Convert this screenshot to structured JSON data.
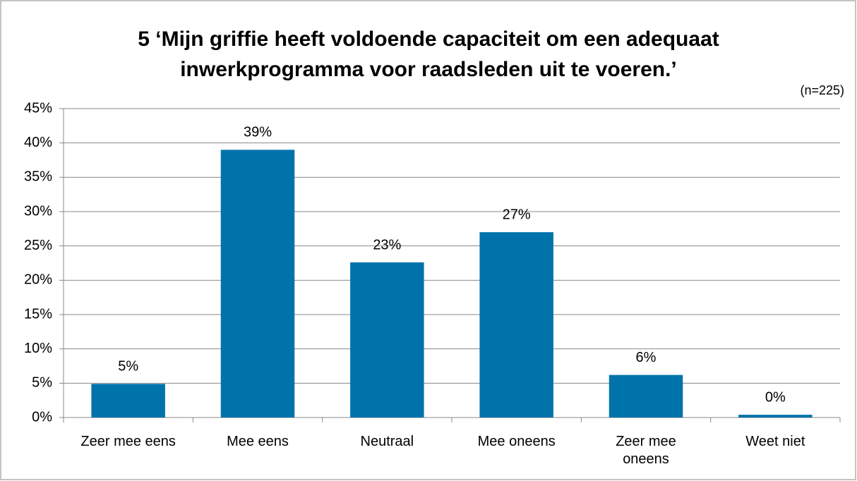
{
  "chart_data": {
    "type": "bar",
    "title": "5 ‘Mijn griffie heeft voldoende capaciteit om een adequaat\ninwerkprogramma voor raadsleden uit te voeren.’",
    "subtitle": "(n=225)",
    "categories": [
      "Zeer mee eens",
      "Mee eens",
      "Neutraal",
      "Mee oneens",
      "Zeer mee oneens",
      "Weet niet"
    ],
    "values": [
      4.9,
      39,
      22.6,
      27,
      6.2,
      0.4
    ],
    "value_labels": [
      "5%",
      "39%",
      "23%",
      "27%",
      "6%",
      "0%"
    ],
    "color": "#0073ab",
    "ylim": [
      0,
      45
    ],
    "yticks": [
      {
        "value": 0,
        "label": "0%"
      },
      {
        "value": 5,
        "label": "5%"
      },
      {
        "value": 10,
        "label": "10%"
      },
      {
        "value": 15,
        "label": "15%"
      },
      {
        "value": 20,
        "label": "20%"
      },
      {
        "value": 25,
        "label": "25%"
      },
      {
        "value": 30,
        "label": "30%"
      },
      {
        "value": 35,
        "label": "35%"
      },
      {
        "value": 40,
        "label": "40%"
      },
      {
        "value": 45,
        "label": "45%"
      }
    ],
    "grid": true
  }
}
